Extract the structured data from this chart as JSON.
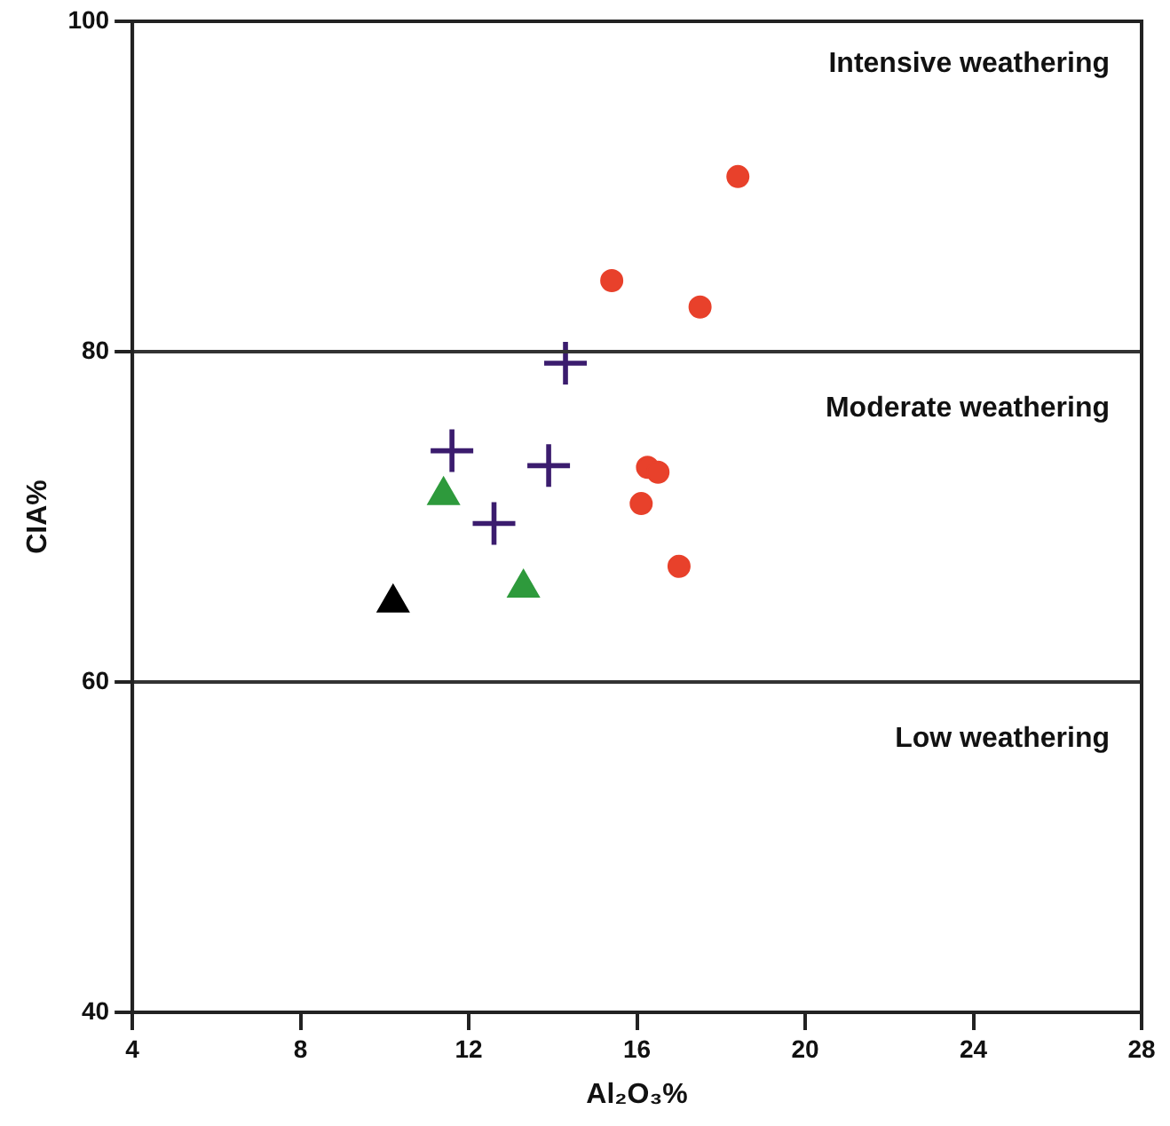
{
  "chart_data": {
    "type": "scatter",
    "xlabel": "Al₂O₃%",
    "ylabel": "CIA%",
    "xlim": [
      4,
      28
    ],
    "xticks": [
      4,
      8,
      12,
      16,
      20,
      24,
      28
    ],
    "ylim": [
      40,
      100
    ],
    "yticks": [
      40,
      60,
      80,
      100
    ],
    "grid": false,
    "legend": false,
    "series": [
      {
        "color": "#e8412b",
        "marker": "circle",
        "x": [
          18.4,
          15.4,
          17.5,
          16.25,
          16.5,
          16.1,
          17.0
        ],
        "values": [
          90.6,
          84.3,
          82.7,
          73.0,
          72.7,
          70.8,
          67.0
        ]
      },
      {
        "color": "#3b1c6e",
        "marker": "cross",
        "x": [
          14.3,
          11.6,
          13.9,
          12.6
        ],
        "values": [
          79.3,
          74.0,
          73.1,
          69.6
        ]
      },
      {
        "color": "#2e9a3c",
        "marker": "triangle",
        "x": [
          11.4,
          13.3
        ],
        "values": [
          71.3,
          65.7
        ]
      },
      {
        "color": "#000000",
        "marker": "triangle",
        "x": [
          10.2
        ],
        "values": [
          64.8
        ]
      }
    ],
    "ref_lines": [
      {
        "axis": "y",
        "value": 80
      },
      {
        "axis": "y",
        "value": 60
      }
    ],
    "annotations": [
      "Intensive weathering",
      "Moderate weathering",
      "Low weathering"
    ]
  }
}
